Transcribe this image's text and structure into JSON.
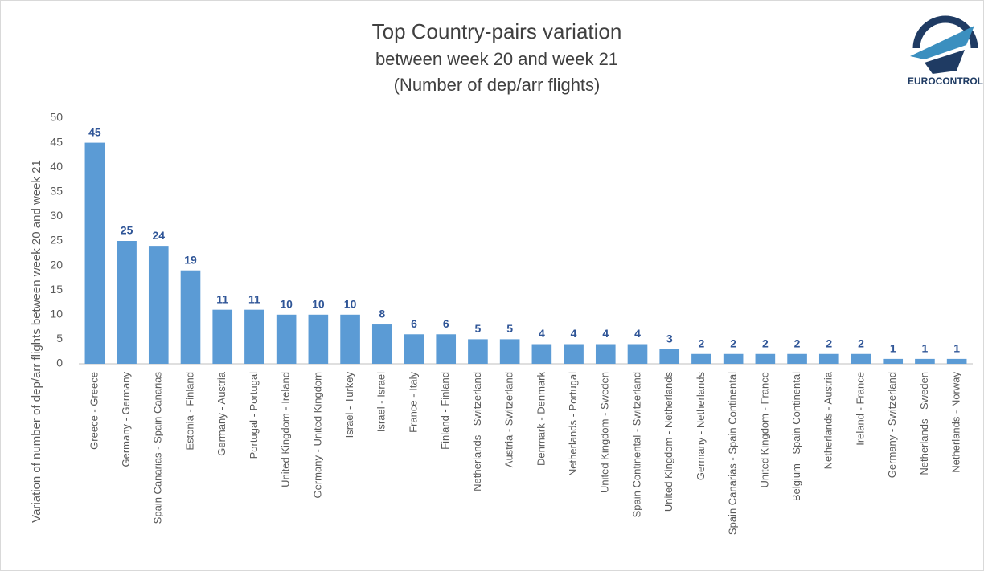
{
  "chart_data": {
    "type": "bar",
    "title": "Top Country-pairs variation",
    "subtitle": [
      "between week 20 and week 21",
      "(Number of dep/arr flights)"
    ],
    "y_label": "Variation of number of dep/arr flights between week 20 and week 21",
    "logo_text": "EUROCONTROL",
    "categories": [
      "Greece - Greece",
      "Germany - Germany",
      "Spain Canarias - Spain Canarias",
      "Estonia - Finland",
      "Germany - Austria",
      "Portugal - Portugal",
      "United Kingdom - Ireland",
      "Germany - United Kingdom",
      "Israel - Turkey",
      "Israel - Israel",
      "France - Italy",
      "Finland - Finland",
      "Netherlands - Switzerland",
      "Austria - Switzerland",
      "Denmark - Denmark",
      "Netherlands - Portugal",
      "United Kingdom - Sweden",
      "Spain Continental - Switzerland",
      "United Kingdom - Netherlands",
      "Germany - Netherlands",
      "Spain Canarias - Spain Continental",
      "United Kingdom - France",
      "Belgium - Spain Continental",
      "Netherlands - Austria",
      "Ireland - France",
      "Germany - Switzerland",
      "Netherlands - Sweden",
      "Netherlands - Norway"
    ],
    "values": [
      45,
      25,
      24,
      19,
      11,
      11,
      10,
      10,
      10,
      8,
      6,
      6,
      5,
      5,
      4,
      4,
      4,
      4,
      3,
      2,
      2,
      2,
      2,
      2,
      2,
      1,
      1,
      1
    ],
    "color": "#5b9bd5",
    "label_color": "#2f5597",
    "ylim": [
      0,
      50
    ],
    "yticks": [
      0,
      5,
      10,
      15,
      20,
      25,
      30,
      35,
      40,
      45,
      50
    ],
    "grid": false
  }
}
